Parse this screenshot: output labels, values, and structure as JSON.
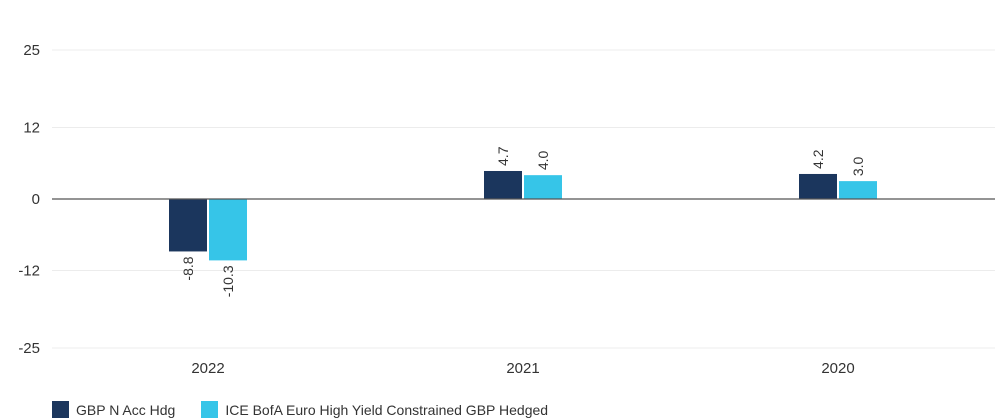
{
  "chart_data": {
    "type": "bar",
    "categories": [
      "2022",
      "2021",
      "2020"
    ],
    "series": [
      {
        "name": "GBP N Acc Hdg",
        "values": [
          -8.8,
          4.7,
          4.2
        ],
        "labels": [
          "-8.8",
          "4.7",
          "4.2"
        ],
        "color": "#1b365d"
      },
      {
        "name": "ICE BofA Euro High Yield Constrained GBP Hedged",
        "values": [
          -10.3,
          4.0,
          3.0
        ],
        "labels": [
          "-10.3",
          "4.0",
          "3.0"
        ],
        "color": "#36c5e8"
      }
    ],
    "yticks": [
      25,
      12,
      0,
      -12,
      -25
    ],
    "ylim": [
      -25,
      25
    ],
    "grid": true,
    "legend": "bottom-left",
    "title": "",
    "xlabel": "",
    "ylabel": ""
  }
}
